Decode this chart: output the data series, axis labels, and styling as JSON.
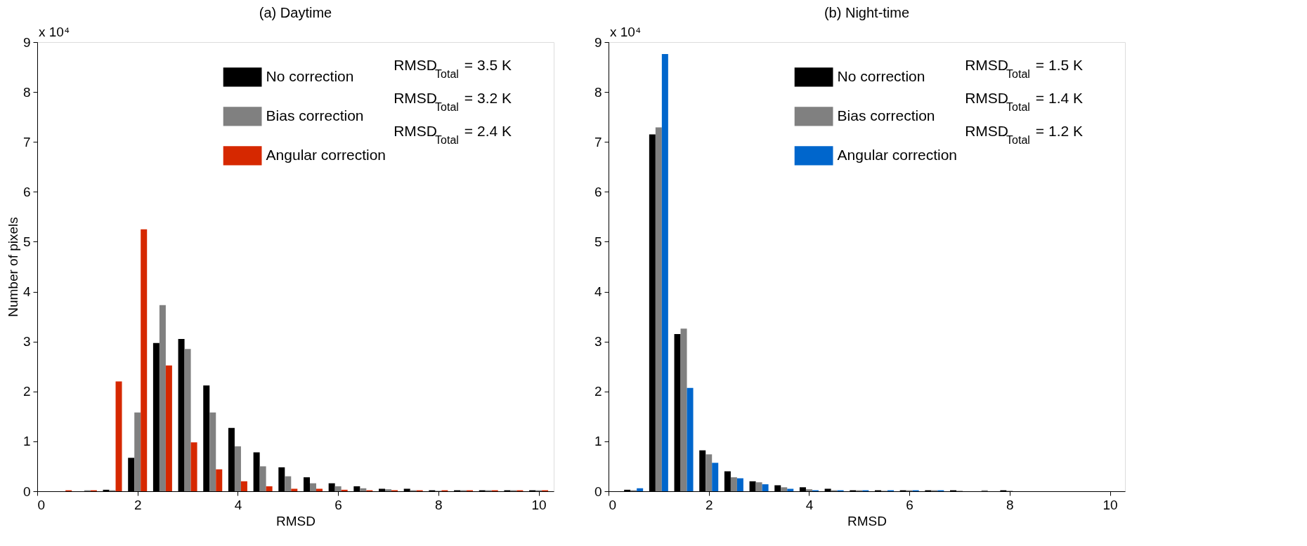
{
  "chart_data": [
    {
      "type": "bar",
      "title": "(a) Daytime",
      "xlabel": "RMSD",
      "ylabel": "Number of pixels",
      "x": [
        0.5,
        1.0,
        1.5,
        2.0,
        2.5,
        3.0,
        3.5,
        4.0,
        4.5,
        5.0,
        5.5,
        6.0,
        6.5,
        7.0,
        7.5,
        8.0,
        8.5,
        9.0,
        9.5,
        10.0
      ],
      "series": [
        {
          "name": "No correction",
          "color": "#000000",
          "values": [
            0,
            0,
            0.03,
            0.67,
            2.97,
            3.05,
            2.12,
            1.27,
            0.78,
            0.48,
            0.28,
            0.16,
            0.1,
            0.05,
            0.05,
            0.02,
            0.02,
            0.02,
            0.02,
            0.02
          ]
        },
        {
          "name": "Bias correction",
          "color": "#808080",
          "values": [
            0,
            0.02,
            0.02,
            1.58,
            3.73,
            2.85,
            1.58,
            0.9,
            0.5,
            0.3,
            0.16,
            0.1,
            0.06,
            0.04,
            0.02,
            0.01,
            0.02,
            0.02,
            0.02,
            0.02
          ]
        },
        {
          "name": "Angular correction",
          "color": "#d62800",
          "values": [
            0.02,
            0.02,
            2.2,
            5.25,
            2.52,
            0.98,
            0.44,
            0.2,
            0.1,
            0.05,
            0.05,
            0.03,
            0.02,
            0.02,
            0.02,
            0.02,
            0.02,
            0.02,
            0.02,
            0.02
          ]
        }
      ],
      "xlim": [
        0,
        10.3
      ],
      "xticks": [
        0,
        2,
        4,
        6,
        8,
        10
      ],
      "ylim": [
        0,
        9
      ],
      "yticks": [
        0,
        1,
        2,
        3,
        4,
        5,
        6,
        7,
        8,
        9
      ],
      "grid": false,
      "legend": "top right",
      "annotations": [
        "x 10⁴",
        "RMSD$_{Total}$= 3.5 K",
        "RMSD$_{Total}$= 3.2 K",
        "RMSD$_{Total}$= 2.4 K"
      ]
    },
    {
      "type": "bar",
      "title": "(b) Night-time",
      "xlabel": "RMSD",
      "x": [
        0.5,
        1.0,
        1.5,
        2.0,
        2.5,
        3.0,
        3.5,
        4.0,
        4.5,
        5.0,
        5.5,
        6.0,
        6.5,
        7.0,
        7.5,
        8.0,
        8.5,
        9.0,
        9.5,
        10.0
      ],
      "series": [
        {
          "name": "No correction",
          "color": "#000000",
          "values": [
            0.03,
            7.15,
            3.15,
            0.82,
            0.4,
            0.2,
            0.12,
            0.08,
            0.05,
            0.02,
            0.02,
            0.02,
            0.02,
            0.02,
            0,
            0.02,
            0,
            0,
            0,
            0
          ]
        },
        {
          "name": "Bias correction",
          "color": "#808080",
          "values": [
            0.02,
            7.29,
            3.26,
            0.74,
            0.28,
            0.18,
            0.08,
            0.04,
            0.02,
            0.02,
            0.01,
            0.02,
            0.02,
            0.01,
            0.02,
            0.01,
            0,
            0,
            0,
            0
          ]
        },
        {
          "name": "Angular correction",
          "color": "#0066cc",
          "values": [
            0.06,
            8.76,
            2.07,
            0.57,
            0.26,
            0.14,
            0.05,
            0.02,
            0.02,
            0.02,
            0.02,
            0.02,
            0.02,
            0,
            0,
            0,
            0,
            0,
            0,
            0
          ]
        }
      ],
      "xlim": [
        0,
        10.3
      ],
      "xticks": [
        0,
        2,
        4,
        6,
        8,
        10
      ],
      "ylim": [
        0,
        9
      ],
      "yticks": [
        0,
        1,
        2,
        3,
        4,
        5,
        6,
        7,
        8,
        9
      ],
      "grid": false,
      "legend": "top right",
      "annotations": [
        "x 10⁴",
        "RMSD$_{Total}$= 1.5 K",
        "RMSD$_{Total}$= 1.4 K",
        "RMSD$_{Total}$= 1.2 K"
      ]
    }
  ]
}
